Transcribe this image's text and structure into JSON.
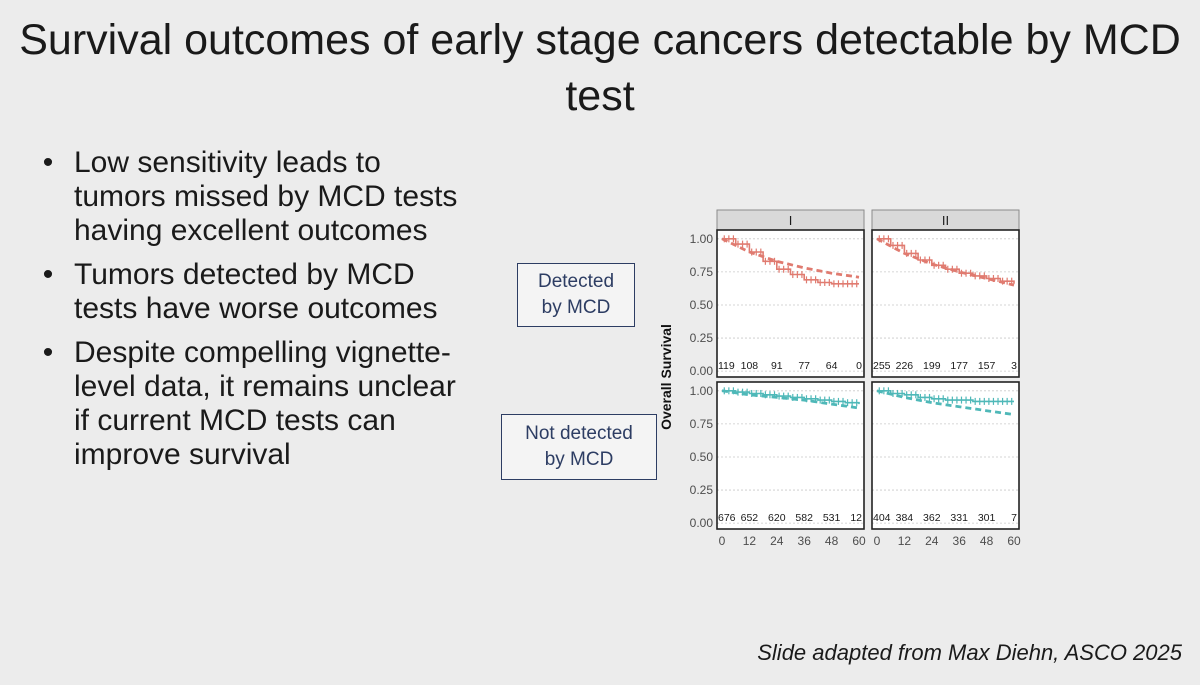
{
  "slide": {
    "title": "Survival outcomes of early stage cancers detectable by MCD test",
    "bullets": [
      "Low sensitivity leads to tumors missed by MCD tests having excellent outcomes",
      "Tumors detected by MCD tests have worse outcomes",
      "Despite compelling vignette-level data, it remains unclear if current MCD tests can improve survival"
    ],
    "row_labels": [
      "Detected\nby MCD",
      "Not detected\nby MCD"
    ],
    "credit": "Slide adapted from Max Diehn, ASCO 2025"
  },
  "chart_data": {
    "type": "line",
    "ylabel": "Overall Survival",
    "xlabel": "",
    "x_ticks": [
      0,
      12,
      24,
      36,
      48,
      60
    ],
    "y_ticks": [
      0.0,
      0.25,
      0.5,
      0.75,
      1.0
    ],
    "xlim": [
      0,
      60
    ],
    "ylim": [
      0,
      1
    ],
    "columns": [
      "I",
      "II"
    ],
    "rows": [
      "Detected by MCD",
      "Not detected by MCD"
    ],
    "colors": {
      "detected": "#e07b70",
      "not_detected": "#4fb8b8"
    },
    "panels": [
      {
        "row": 0,
        "col": 0,
        "risk_table": [
          "119",
          "108",
          "91",
          "77",
          "64",
          "0"
        ],
        "observed": {
          "x": [
            0,
            6,
            12,
            18,
            24,
            30,
            36,
            42,
            48,
            54,
            60
          ],
          "y": [
            1.0,
            0.96,
            0.9,
            0.83,
            0.77,
            0.73,
            0.69,
            0.67,
            0.66,
            0.66,
            0.66
          ]
        },
        "expected": {
          "x": [
            0,
            12,
            24,
            36,
            48,
            60
          ],
          "y": [
            1.0,
            0.9,
            0.83,
            0.78,
            0.74,
            0.71
          ]
        }
      },
      {
        "row": 0,
        "col": 1,
        "risk_table": [
          "255",
          "226",
          "199",
          "177",
          "157",
          "3"
        ],
        "observed": {
          "x": [
            0,
            6,
            12,
            18,
            24,
            30,
            36,
            42,
            48,
            54,
            60
          ],
          "y": [
            1.0,
            0.95,
            0.89,
            0.84,
            0.8,
            0.77,
            0.74,
            0.72,
            0.7,
            0.68,
            0.66
          ]
        },
        "expected": {
          "x": [
            0,
            12,
            24,
            36,
            48,
            60
          ],
          "y": [
            1.0,
            0.89,
            0.81,
            0.75,
            0.7,
            0.65
          ]
        }
      },
      {
        "row": 1,
        "col": 0,
        "risk_table": [
          "676",
          "652",
          "620",
          "582",
          "531",
          "12"
        ],
        "observed": {
          "x": [
            0,
            6,
            12,
            18,
            24,
            30,
            36,
            42,
            48,
            54,
            60
          ],
          "y": [
            1.0,
            0.99,
            0.98,
            0.97,
            0.96,
            0.95,
            0.94,
            0.93,
            0.92,
            0.91,
            0.9
          ]
        },
        "expected": {
          "x": [
            0,
            12,
            24,
            36,
            48,
            60
          ],
          "y": [
            1.0,
            0.97,
            0.95,
            0.93,
            0.9,
            0.87
          ]
        }
      },
      {
        "row": 1,
        "col": 1,
        "risk_table": [
          "404",
          "384",
          "362",
          "331",
          "301",
          "7"
        ],
        "observed": {
          "x": [
            0,
            6,
            12,
            18,
            24,
            30,
            36,
            42,
            48,
            54,
            60
          ],
          "y": [
            1.0,
            0.98,
            0.97,
            0.95,
            0.94,
            0.93,
            0.93,
            0.92,
            0.92,
            0.92,
            0.92
          ]
        },
        "expected": {
          "x": [
            0,
            12,
            24,
            36,
            48,
            60
          ],
          "y": [
            1.0,
            0.95,
            0.91,
            0.88,
            0.85,
            0.82
          ]
        }
      }
    ]
  }
}
